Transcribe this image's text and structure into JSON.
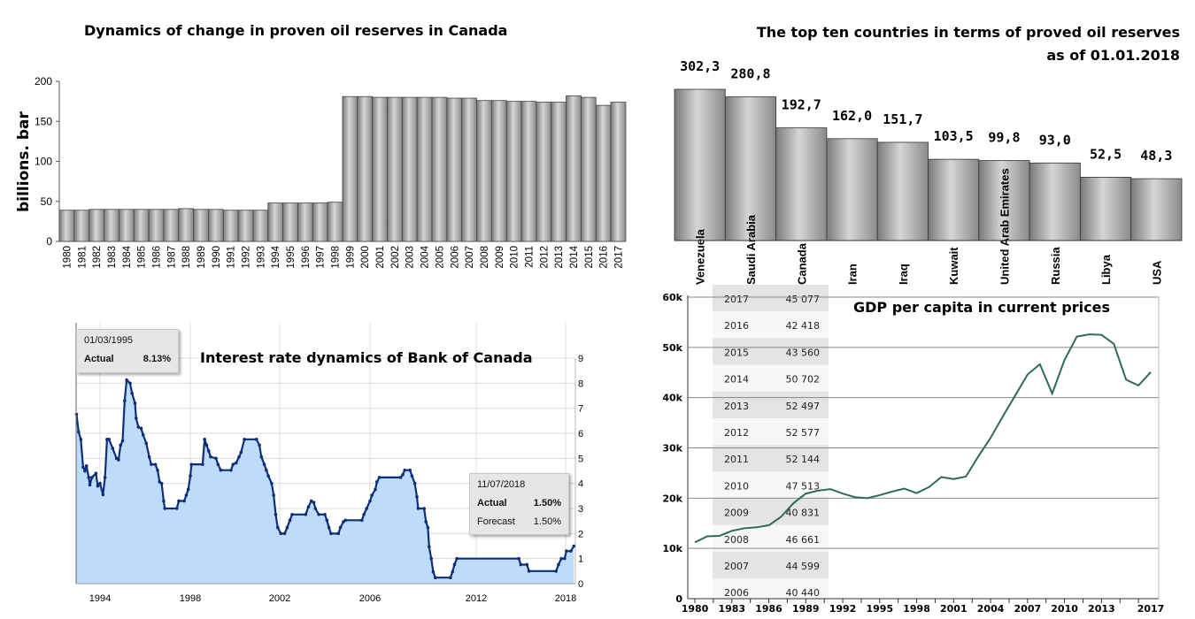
{
  "chart_data": [
    {
      "type": "bar",
      "title": "Dynamics of change in proven oil reserves in Canada",
      "ylabel": "billions. bar",
      "ylim": [
        0,
        200
      ],
      "yticks": [
        0,
        50,
        100,
        150,
        200
      ],
      "categories": [
        "1980",
        "1981",
        "1982",
        "1983",
        "1984",
        "1985",
        "1986",
        "1987",
        "1988",
        "1989",
        "1990",
        "1991",
        "1992",
        "1993",
        "1994",
        "1995",
        "1996",
        "1997",
        "1998",
        "1999",
        "2000",
        "2001",
        "2002",
        "2003",
        "2004",
        "2005",
        "2006",
        "2007",
        "2008",
        "2009",
        "2010",
        "2011",
        "2012",
        "2013",
        "2014",
        "2015",
        "2016",
        "2017"
      ],
      "values": [
        39,
        39,
        40,
        40,
        40,
        40,
        40,
        40,
        41,
        40,
        40,
        39,
        39,
        39,
        48,
        48,
        48,
        48,
        49,
        181,
        181,
        180,
        180,
        180,
        180,
        180,
        179,
        179,
        176,
        176,
        175,
        175,
        174,
        174,
        182,
        180,
        170,
        174
      ],
      "color": "#a8a8a8"
    },
    {
      "type": "bar",
      "title_line1": "The top ten countries in terms of proved oil reserves",
      "title_line2": "as of 01.01.2018",
      "categories": [
        "Venezuela",
        "Saudi Arabia",
        "Canada",
        "Iran",
        "Iraq",
        "Kuwait",
        "United Arab Emirates",
        "Russia",
        "Libya",
        "USA"
      ],
      "values": [
        302.3,
        280.8,
        192.7,
        162.0,
        151.7,
        103.5,
        99.8,
        93.0,
        52.5,
        48.3
      ],
      "value_labels": [
        "302,3",
        "280,8",
        "192,7",
        "162,0",
        "151,7",
        "103,5",
        "99,8",
        "93,0",
        "52,5",
        "48,3"
      ],
      "color": "#a8a8a8"
    },
    {
      "type": "area",
      "title": "Interest rate dynamics of Bank of Canada",
      "x_ticks": [
        "1994",
        "1998",
        "2002",
        "2006",
        "2012",
        "2018"
      ],
      "y_ticks": [
        "0",
        "1",
        "2",
        "3",
        "4",
        "5",
        "6",
        "7",
        "8",
        "9"
      ],
      "ylim": [
        0,
        9
      ],
      "grid": true,
      "y_axis_side": "right",
      "line_color": "#0d2f7a",
      "fill_color": "#bddcfb",
      "points": [
        [
          1992.96,
          6.76
        ],
        [
          1993.05,
          6.06
        ],
        [
          1993.15,
          5.76
        ],
        [
          1993.25,
          4.65
        ],
        [
          1993.33,
          4.5
        ],
        [
          1993.4,
          4.7
        ],
        [
          1993.5,
          4.24
        ],
        [
          1993.55,
          3.94
        ],
        [
          1993.64,
          4.24
        ],
        [
          1993.82,
          4.4
        ],
        [
          1993.9,
          3.9
        ],
        [
          1994.0,
          4.0
        ],
        [
          1994.13,
          3.55
        ],
        [
          1994.22,
          4.24
        ],
        [
          1994.31,
          5.76
        ],
        [
          1994.4,
          5.76
        ],
        [
          1994.56,
          5.4
        ],
        [
          1994.73,
          5.0
        ],
        [
          1994.82,
          4.94
        ],
        [
          1994.91,
          5.53
        ],
        [
          1995.0,
          5.7
        ],
        [
          1995.09,
          7.3
        ],
        [
          1995.18,
          8.13
        ],
        [
          1995.33,
          8.0
        ],
        [
          1995.42,
          7.6
        ],
        [
          1995.55,
          7.2
        ],
        [
          1995.6,
          6.6
        ],
        [
          1995.7,
          6.25
        ],
        [
          1995.82,
          6.2
        ],
        [
          1995.91,
          5.94
        ],
        [
          1996.05,
          5.6
        ],
        [
          1996.18,
          5.06
        ],
        [
          1996.27,
          4.76
        ],
        [
          1996.45,
          4.76
        ],
        [
          1996.55,
          4.53
        ],
        [
          1996.64,
          4.06
        ],
        [
          1996.73,
          4.0
        ],
        [
          1996.82,
          3.3
        ],
        [
          1996.87,
          3.0
        ],
        [
          1997.4,
          3.0
        ],
        [
          1997.49,
          3.3
        ],
        [
          1997.73,
          3.3
        ],
        [
          1997.82,
          3.53
        ],
        [
          1997.91,
          3.76
        ],
        [
          1998.0,
          4.3
        ],
        [
          1998.05,
          4.76
        ],
        [
          1998.55,
          4.76
        ],
        [
          1998.64,
          5.76
        ],
        [
          1998.73,
          5.53
        ],
        [
          1998.82,
          5.3
        ],
        [
          1998.91,
          5.06
        ],
        [
          1999.15,
          5.0
        ],
        [
          1999.24,
          4.76
        ],
        [
          1999.36,
          4.53
        ],
        [
          1999.82,
          4.53
        ],
        [
          1999.91,
          4.76
        ],
        [
          2000.05,
          4.82
        ],
        [
          2000.18,
          5.06
        ],
        [
          2000.27,
          5.24
        ],
        [
          2000.42,
          5.76
        ],
        [
          2000.96,
          5.76
        ],
        [
          2001.09,
          5.53
        ],
        [
          2001.18,
          5.06
        ],
        [
          2001.31,
          4.76
        ],
        [
          2001.4,
          4.53
        ],
        [
          2001.49,
          4.3
        ],
        [
          2001.64,
          4.0
        ],
        [
          2001.73,
          3.53
        ],
        [
          2001.82,
          2.76
        ],
        [
          2001.91,
          2.24
        ],
        [
          2002.05,
          2.0
        ],
        [
          2002.22,
          2.0
        ],
        [
          2002.33,
          2.24
        ],
        [
          2002.45,
          2.53
        ],
        [
          2002.55,
          2.76
        ],
        [
          2003.15,
          2.76
        ],
        [
          2003.27,
          3.06
        ],
        [
          2003.4,
          3.3
        ],
        [
          2003.51,
          3.24
        ],
        [
          2003.58,
          3.0
        ],
        [
          2003.73,
          2.76
        ],
        [
          2004.0,
          2.76
        ],
        [
          2004.09,
          2.53
        ],
        [
          2004.18,
          2.24
        ],
        [
          2004.27,
          2.0
        ],
        [
          2004.6,
          2.0
        ],
        [
          2004.69,
          2.24
        ],
        [
          2004.82,
          2.47
        ],
        [
          2004.91,
          2.53
        ],
        [
          2005.64,
          2.53
        ],
        [
          2005.73,
          2.76
        ],
        [
          2005.85,
          3.0
        ],
        [
          2006.0,
          3.3
        ],
        [
          2006.11,
          3.53
        ],
        [
          2006.3,
          3.76
        ],
        [
          2006.39,
          4.06
        ],
        [
          2006.53,
          4.24
        ],
        [
          2007.73,
          4.24
        ],
        [
          2007.85,
          4.35
        ],
        [
          2007.96,
          4.53
        ],
        [
          2008.26,
          4.53
        ],
        [
          2008.37,
          4.3
        ],
        [
          2008.53,
          4.0
        ],
        [
          2008.65,
          3.47
        ],
        [
          2008.72,
          3.0
        ],
        [
          2009.06,
          3.0
        ],
        [
          2009.16,
          2.47
        ],
        [
          2009.27,
          2.24
        ],
        [
          2009.34,
          1.47
        ],
        [
          2009.46,
          1.0
        ],
        [
          2009.57,
          0.47
        ],
        [
          2009.69,
          0.24
        ],
        [
          2010.54,
          0.24
        ],
        [
          2010.66,
          0.47
        ],
        [
          2010.77,
          0.76
        ],
        [
          2010.91,
          1.0
        ],
        [
          2014.86,
          1.0
        ],
        [
          2014.99,
          0.76
        ],
        [
          2015.4,
          0.76
        ],
        [
          2015.54,
          0.5
        ],
        [
          2017.36,
          0.5
        ],
        [
          2017.52,
          0.76
        ],
        [
          2017.71,
          1.0
        ],
        [
          2017.93,
          1.0
        ],
        [
          2018.05,
          1.3
        ],
        [
          2018.35,
          1.3
        ],
        [
          2018.55,
          1.5
        ]
      ],
      "tooltips": [
        {
          "date": "01/03/1995",
          "rows": [
            {
              "label": "Actual",
              "value": "8.13%"
            }
          ]
        },
        {
          "date": "11/07/2018",
          "rows": [
            {
              "label": "Actual",
              "value": "1.50%"
            },
            {
              "label": "Forecast",
              "value": "1.50%"
            }
          ]
        }
      ]
    },
    {
      "type": "line",
      "title": "GDP per capita in current prices",
      "x": [
        1980,
        1981,
        1982,
        1983,
        1984,
        1985,
        1986,
        1987,
        1988,
        1989,
        1990,
        1991,
        1992,
        1993,
        1994,
        1995,
        1996,
        1997,
        1998,
        1999,
        2000,
        2001,
        2002,
        2003,
        2004,
        2005,
        2006,
        2007,
        2008,
        2009,
        2010,
        2011,
        2012,
        2013,
        2014,
        2015,
        2016,
        2017
      ],
      "values": [
        11.2,
        12.4,
        12.5,
        13.5,
        14.0,
        14.2,
        14.6,
        16.3,
        19.0,
        20.9,
        21.5,
        21.8,
        20.9,
        20.2,
        20.0,
        20.6,
        21.3,
        21.9,
        21.0,
        22.2,
        24.2,
        23.8,
        24.3,
        28.3,
        32.0,
        36.3,
        40.44,
        44.6,
        46.66,
        40.83,
        47.51,
        52.14,
        52.58,
        52.5,
        50.7,
        43.56,
        42.42,
        45.08
      ],
      "value_unit": "thousands",
      "ylim": [
        0,
        60
      ],
      "y_ticks": [
        "0",
        "10k",
        "20k",
        "30k",
        "40k",
        "50k",
        "60k"
      ],
      "x_ticks": [
        "1980",
        "1983",
        "1986",
        "1989",
        "1992",
        "1995",
        "1998",
        "2001",
        "2004",
        "2007",
        "2010",
        "2013",
        "2017"
      ],
      "grid": true,
      "line_color": "#2e6b55",
      "table": [
        {
          "year": "2017",
          "value": "45 077"
        },
        {
          "year": "2016",
          "value": "42 418"
        },
        {
          "year": "2015",
          "value": "43 560"
        },
        {
          "year": "2014",
          "value": "50 702"
        },
        {
          "year": "2013",
          "value": "52 497"
        },
        {
          "year": "2012",
          "value": "52 577"
        },
        {
          "year": "2011",
          "value": "52 144"
        },
        {
          "year": "2010",
          "value": "47 513"
        },
        {
          "year": "2009",
          "value": "40 831"
        },
        {
          "year": "2008",
          "value": "46 661"
        },
        {
          "year": "2007",
          "value": "44 599"
        },
        {
          "year": "2006",
          "value": "40 440"
        }
      ]
    }
  ]
}
